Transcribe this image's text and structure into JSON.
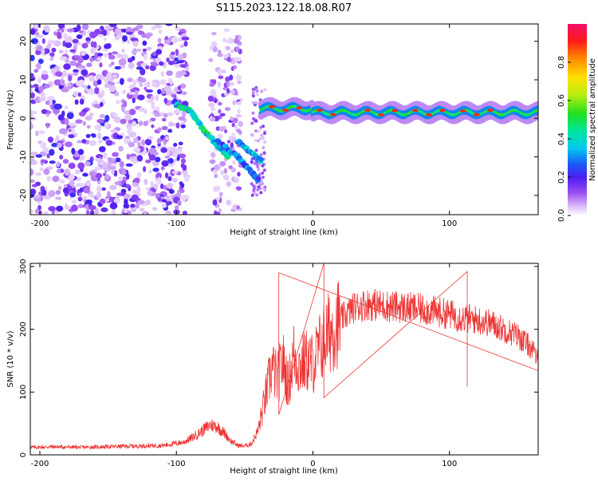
{
  "figure": {
    "title": "S115.2023.122.18.08.R07"
  },
  "chart_data": [
    {
      "type": "heatmap",
      "title": "S115.2023.122.18.08.R07",
      "xlabel": "Height of straight line (km)",
      "ylabel": "Frequency (Hz)",
      "xlim": [
        -207,
        165
      ],
      "ylim": [
        -25,
        24.5
      ],
      "x_ticks": [
        -200,
        -100,
        0,
        100
      ],
      "x_tick_labels": [
        "-200",
        "-100",
        "0",
        "100"
      ],
      "y_ticks": [
        -20,
        -10,
        0,
        10,
        20
      ],
      "y_tick_labels": [
        "-20",
        "-10",
        "0",
        "10",
        "20"
      ],
      "colorbar": {
        "label": "Normalized spectral amplitude",
        "range": [
          0,
          1
        ],
        "ticks": [
          0.0,
          0.2,
          0.4,
          0.6,
          0.8
        ],
        "tick_labels": [
          "0.0",
          "0.2",
          "0.4",
          "0.6",
          "0.8"
        ],
        "colormap": "rainbow"
      },
      "features": [
        {
          "name": "dominant tone",
          "x_range": [
            -38,
            165
          ],
          "frequency_hz": 1.5,
          "amplitude": 0.85
        },
        {
          "name": "descending trace A",
          "points": [
            [
              -100,
              3.5
            ],
            [
              -90,
              2
            ],
            [
              -80,
              -3
            ],
            [
              -70,
              -7
            ],
            [
              -62,
              -10
            ]
          ],
          "amplitude": 0.45
        },
        {
          "name": "descending trace B",
          "points": [
            [
              -70,
              -6
            ],
            [
              -55,
              -10
            ],
            [
              -45,
              -14
            ],
            [
              -40,
              -16
            ]
          ],
          "amplitude": 0.3
        },
        {
          "name": "descending trace C",
          "points": [
            [
              -55,
              -6
            ],
            [
              -42,
              -10
            ],
            [
              -38,
              -11
            ]
          ],
          "amplitude": 0.35
        },
        {
          "name": "broadband noise",
          "x_range": [
            -207,
            -92
          ],
          "frequency_range": [
            -25,
            24.5
          ],
          "amplitude": 0.15
        }
      ]
    },
    {
      "type": "line",
      "xlabel": "Height of straight line (km)",
      "ylabel": "SNR (10 * v/v)",
      "xlim": [
        -207,
        165
      ],
      "ylim": [
        0,
        305
      ],
      "x_ticks": [
        -200,
        -100,
        0,
        100
      ],
      "x_tick_labels": [
        "-200",
        "-100",
        "0",
        "100"
      ],
      "y_ticks": [
        0,
        100,
        200,
        300
      ],
      "y_tick_labels": [
        "0",
        "100",
        "200",
        "300"
      ],
      "color": "#ee3333",
      "series": [
        {
          "x": [
            -207,
            -190,
            -170,
            -150,
            -130,
            -110,
            -95,
            -88,
            -80,
            -75,
            -70,
            -65,
            -60,
            -55,
            -50,
            -45,
            -40,
            -35,
            -30,
            -26,
            -22,
            -18,
            -14,
            -10,
            -5,
            0,
            5,
            10,
            20,
            30,
            40,
            50,
            60,
            70,
            80,
            90,
            100,
            110,
            120,
            130,
            140,
            150,
            160,
            165
          ],
          "y": [
            12,
            13,
            12,
            13,
            14,
            15,
            20,
            28,
            40,
            48,
            45,
            35,
            22,
            15,
            14,
            18,
            40,
            90,
            140,
            120,
            150,
            110,
            160,
            140,
            150,
            145,
            170,
            190,
            215,
            235,
            240,
            238,
            236,
            234,
            232,
            228,
            224,
            218,
            215,
            210,
            200,
            190,
            170,
            150
          ]
        }
      ],
      "annotations": [
        {
          "x": -25,
          "y": 290
        },
        {
          "x": 8,
          "y": 305
        },
        {
          "x": 113,
          "y": 292
        }
      ]
    }
  ]
}
